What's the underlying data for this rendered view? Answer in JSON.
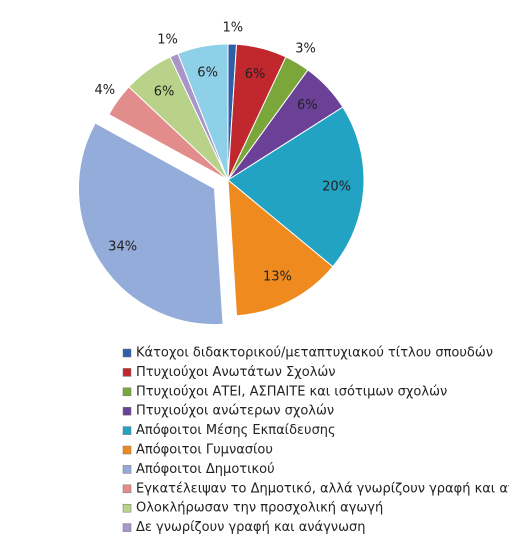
{
  "chart_data": {
    "type": "pie",
    "categories": [
      "Κάτοχοι διδακτορικού/μεταπτυχιακού τίτλου σπουδών",
      "Πτυχιούχοι Ανωτάτων Σχολών",
      "Πτυχιούχοι ΑΤΕΙ, ΑΣΠΑΙΤΕ και ισότιμων σχολών",
      "Πτυχιούχοι ανώτερων σχολών",
      "Απόφοιτοι Μέσης Εκπαίδευσης",
      "Απόφοιτοι Γυμνασίου",
      "Απόφοιτοι Δημοτικού",
      "Εγκατέλειψαν το Δημοτικό, αλλά γνωρίζουν γραφή και ανάγνωση",
      "Ολοκλήρωσαν την προσχολική αγωγή",
      "Δε γνωρίζουν γραφή και ανάγνωση",
      null
    ],
    "values": [
      1,
      6,
      3,
      6,
      20,
      13,
      34,
      4,
      6,
      1,
      6
    ],
    "value_labels": [
      "1%",
      "6%",
      "3%",
      "6%",
      "20%",
      "13%",
      "34%",
      "4%",
      "6%",
      "1%",
      "6%"
    ],
    "colors": [
      "#2e5ea8",
      "#c0282e",
      "#7aa63a",
      "#6b4097",
      "#22a3c3",
      "#ef8a1f",
      "#93acd9",
      "#e38c8c",
      "#b8d389",
      "#a995c9",
      "#8ed0e7"
    ],
    "explode_index": 6
  }
}
